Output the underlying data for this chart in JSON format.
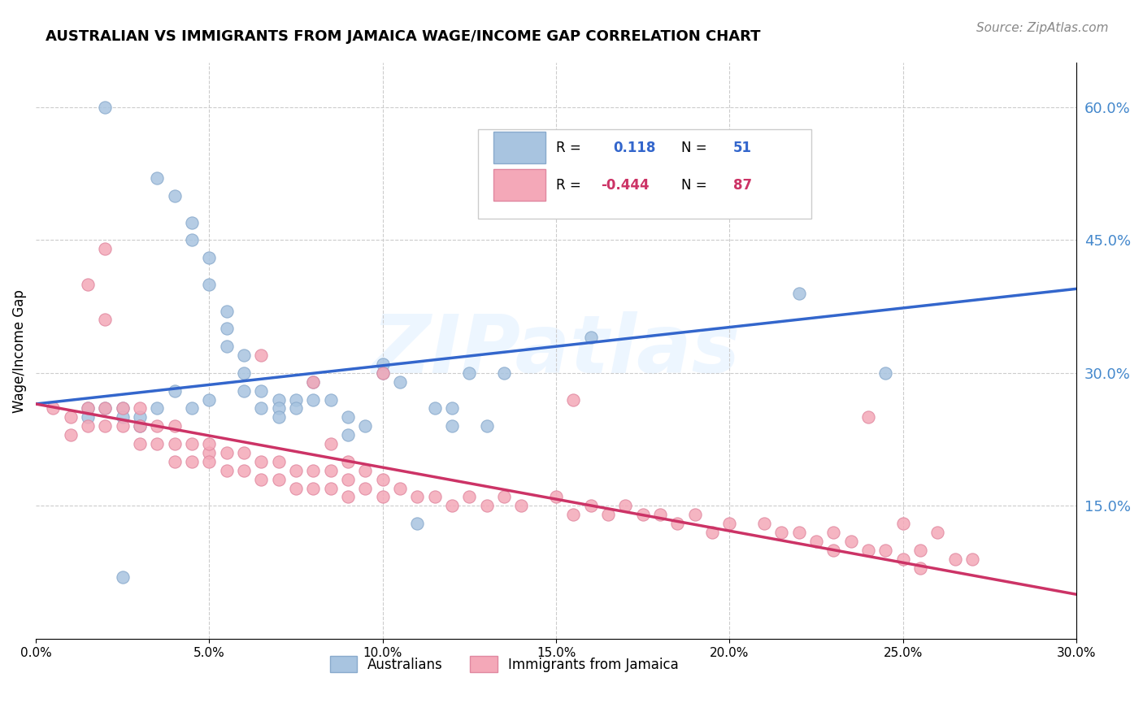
{
  "title": "AUSTRALIAN VS IMMIGRANTS FROM JAMAICA WAGE/INCOME GAP CORRELATION CHART",
  "source": "Source: ZipAtlas.com",
  "ylabel": "Wage/Income Gap",
  "xlabel": "",
  "xlim": [
    0.0,
    0.3
  ],
  "ylim": [
    0.0,
    0.65
  ],
  "xticks": [
    0.0,
    0.05,
    0.1,
    0.15,
    0.2,
    0.25,
    0.3
  ],
  "yticks_right": [
    0.15,
    0.3,
    0.45,
    0.6
  ],
  "ytick_labels_right": [
    "15.0%",
    "30.0%",
    "45.0%",
    "60.0%"
  ],
  "xtick_labels": [
    "0.0%",
    "5.0%",
    "10.0%",
    "15.0%",
    "20.0%",
    "25.0%",
    "30.0%"
  ],
  "legend_r_blue": "0.118",
  "legend_n_blue": "51",
  "legend_r_pink": "-0.444",
  "legend_n_pink": "87",
  "blue_color": "#a8c4e0",
  "pink_color": "#f4a8b8",
  "blue_line_color": "#3366cc",
  "pink_line_color": "#cc3366",
  "dashed_line_color": "#aabbdd",
  "watermark": "ZIPatlas",
  "blue_scatter_x": [
    0.02,
    0.035,
    0.04,
    0.045,
    0.045,
    0.05,
    0.05,
    0.055,
    0.055,
    0.055,
    0.06,
    0.06,
    0.06,
    0.065,
    0.065,
    0.07,
    0.07,
    0.07,
    0.075,
    0.075,
    0.08,
    0.08,
    0.085,
    0.09,
    0.09,
    0.095,
    0.1,
    0.1,
    0.105,
    0.11,
    0.115,
    0.12,
    0.12,
    0.125,
    0.13,
    0.135,
    0.015,
    0.015,
    0.02,
    0.025,
    0.025,
    0.03,
    0.03,
    0.035,
    0.04,
    0.045,
    0.05,
    0.16,
    0.22,
    0.245,
    0.025
  ],
  "blue_scatter_y": [
    0.6,
    0.52,
    0.5,
    0.47,
    0.45,
    0.43,
    0.4,
    0.37,
    0.35,
    0.33,
    0.32,
    0.3,
    0.28,
    0.28,
    0.26,
    0.27,
    0.26,
    0.25,
    0.27,
    0.26,
    0.27,
    0.29,
    0.27,
    0.25,
    0.23,
    0.24,
    0.31,
    0.3,
    0.29,
    0.13,
    0.26,
    0.26,
    0.24,
    0.3,
    0.24,
    0.3,
    0.26,
    0.25,
    0.26,
    0.26,
    0.25,
    0.25,
    0.24,
    0.26,
    0.28,
    0.26,
    0.27,
    0.34,
    0.39,
    0.3,
    0.07
  ],
  "pink_scatter_x": [
    0.005,
    0.01,
    0.01,
    0.015,
    0.015,
    0.02,
    0.02,
    0.025,
    0.025,
    0.03,
    0.03,
    0.03,
    0.035,
    0.035,
    0.04,
    0.04,
    0.04,
    0.045,
    0.045,
    0.05,
    0.05,
    0.05,
    0.055,
    0.055,
    0.06,
    0.06,
    0.065,
    0.065,
    0.07,
    0.07,
    0.075,
    0.075,
    0.08,
    0.08,
    0.085,
    0.085,
    0.09,
    0.09,
    0.095,
    0.1,
    0.1,
    0.105,
    0.11,
    0.115,
    0.12,
    0.125,
    0.13,
    0.135,
    0.14,
    0.15,
    0.155,
    0.16,
    0.165,
    0.17,
    0.175,
    0.18,
    0.185,
    0.19,
    0.195,
    0.2,
    0.21,
    0.215,
    0.22,
    0.225,
    0.23,
    0.23,
    0.235,
    0.24,
    0.245,
    0.25,
    0.255,
    0.255,
    0.265,
    0.27,
    0.02,
    0.015,
    0.02,
    0.065,
    0.08,
    0.085,
    0.09,
    0.095,
    0.1,
    0.155,
    0.24,
    0.25,
    0.26
  ],
  "pink_scatter_y": [
    0.26,
    0.25,
    0.23,
    0.26,
    0.24,
    0.26,
    0.24,
    0.26,
    0.24,
    0.26,
    0.24,
    0.22,
    0.24,
    0.22,
    0.24,
    0.22,
    0.2,
    0.22,
    0.2,
    0.21,
    0.22,
    0.2,
    0.21,
    0.19,
    0.21,
    0.19,
    0.2,
    0.18,
    0.2,
    0.18,
    0.19,
    0.17,
    0.19,
    0.17,
    0.19,
    0.17,
    0.18,
    0.16,
    0.17,
    0.18,
    0.16,
    0.17,
    0.16,
    0.16,
    0.15,
    0.16,
    0.15,
    0.16,
    0.15,
    0.16,
    0.14,
    0.15,
    0.14,
    0.15,
    0.14,
    0.14,
    0.13,
    0.14,
    0.12,
    0.13,
    0.13,
    0.12,
    0.12,
    0.11,
    0.12,
    0.1,
    0.11,
    0.1,
    0.1,
    0.09,
    0.1,
    0.08,
    0.09,
    0.09,
    0.44,
    0.4,
    0.36,
    0.32,
    0.29,
    0.22,
    0.2,
    0.19,
    0.3,
    0.27,
    0.25,
    0.13,
    0.12
  ]
}
